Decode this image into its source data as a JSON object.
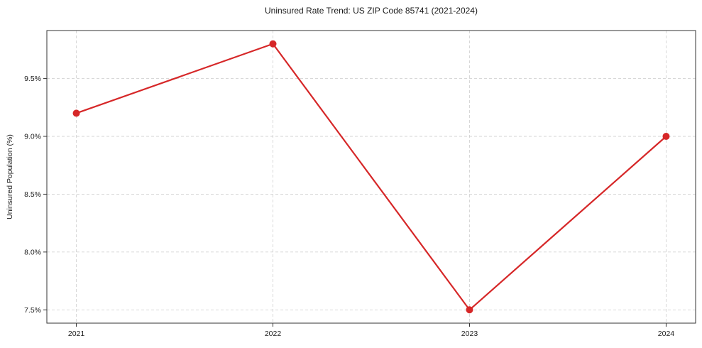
{
  "chart_data": {
    "type": "line",
    "title": "Uninsured Rate Trend: US ZIP Code 85741 (2021-2024)",
    "ylabel": "Uninsured Population (%)",
    "xlabel": "",
    "x": [
      2021,
      2022,
      2023,
      2024
    ],
    "values": [
      9.2,
      9.8,
      7.5,
      9.0
    ],
    "xtick_labels": [
      "2021",
      "2022",
      "2023",
      "2024"
    ],
    "yticks": [
      7.5,
      8.0,
      8.5,
      9.0,
      9.5
    ],
    "ytick_labels": [
      "7.5%",
      "8.0%",
      "8.5%",
      "9.0%",
      "9.5%"
    ],
    "xlim": [
      2020.85,
      2024.15
    ],
    "ylim": [
      7.385,
      9.915
    ],
    "grid": true,
    "legend": false,
    "line_color": "#d62728",
    "marker": "circle",
    "grid_color": "#cccccc",
    "spine_color": "#333333",
    "background": "#ffffff"
  }
}
